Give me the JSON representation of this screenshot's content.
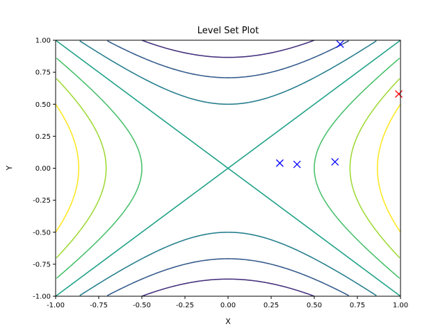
{
  "chart_data": {
    "type": "line",
    "title": "Level Set Plot",
    "xlabel": "X",
    "ylabel": "Y",
    "xlim": [
      -1.0,
      1.0
    ],
    "ylim": [
      -1.0,
      1.0
    ],
    "function": "x^2 - y^2",
    "xticks": [
      "-1.00",
      "-0.75",
      "-0.50",
      "-0.25",
      "0.00",
      "0.25",
      "0.50",
      "0.75",
      "1.00"
    ],
    "yticks": [
      "-1.00",
      "-0.75",
      "-0.50",
      "-0.25",
      "0.00",
      "0.25",
      "0.50",
      "0.75",
      "1.00"
    ],
    "grid": false,
    "levels": [
      {
        "value": -0.75,
        "color": "#46327e"
      },
      {
        "value": -0.5,
        "color": "#365c8d"
      },
      {
        "value": -0.25,
        "color": "#277f8e"
      },
      {
        "value": 0.0,
        "color": "#1fa187"
      },
      {
        "value": 0.25,
        "color": "#4ac16d"
      },
      {
        "value": 0.5,
        "color": "#a0da39"
      },
      {
        "value": 0.75,
        "color": "#fde725"
      }
    ],
    "markers": [
      {
        "x": 0.3,
        "y": 0.04,
        "color": "#0000ff",
        "symbol": "x"
      },
      {
        "x": 0.4,
        "y": 0.03,
        "color": "#0000ff",
        "symbol": "x"
      },
      {
        "x": 0.62,
        "y": 0.05,
        "color": "#0000ff",
        "symbol": "x"
      },
      {
        "x": 0.65,
        "y": 0.97,
        "color": "#0000ff",
        "symbol": "x"
      },
      {
        "x": 0.99,
        "y": 0.58,
        "color": "#ff0000",
        "symbol": "x"
      }
    ]
  }
}
